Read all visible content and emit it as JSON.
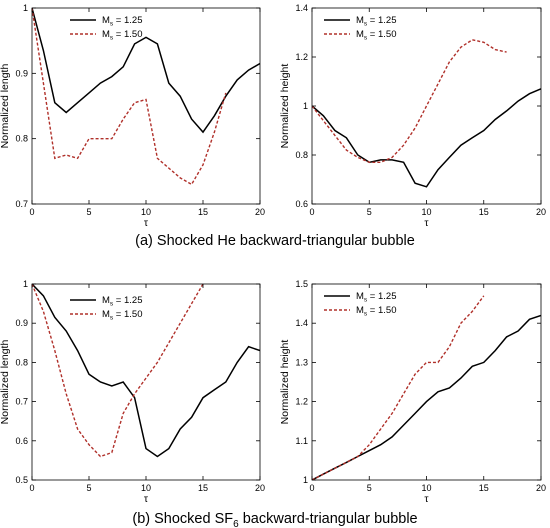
{
  "panels": [
    {
      "caption": "(a) Shocked He backward-triangular bubble",
      "chart_data": [
        {
          "type": "line",
          "xlabel": "τ",
          "ylabel": "Normalized length",
          "xlim": [
            0,
            20
          ],
          "ylim": [
            0.7,
            1.0
          ],
          "xticks": [
            "0",
            "5",
            "10",
            "15",
            "20"
          ],
          "yticks": [
            "0.7",
            "0.8",
            "0.9",
            "1"
          ],
          "legend_position": "top-right",
          "series": [
            {
              "name": "Ms = 1.25",
              "color": "#000000",
              "style": "solid",
              "x": [
                0,
                1,
                2,
                3,
                4,
                5,
                6,
                7,
                8,
                9,
                10,
                11,
                12,
                13,
                14,
                15,
                16,
                17,
                18,
                19,
                20
              ],
              "y": [
                1.0,
                0.935,
                0.855,
                0.84,
                0.855,
                0.87,
                0.885,
                0.895,
                0.91,
                0.945,
                0.955,
                0.945,
                0.885,
                0.865,
                0.83,
                0.81,
                0.835,
                0.865,
                0.89,
                0.905,
                0.915
              ]
            },
            {
              "name": "Ms = 1.50",
              "color": "#b0302a",
              "style": "dashed",
              "x": [
                0,
                1,
                2,
                3,
                4,
                5,
                6,
                7,
                8,
                9,
                10,
                11,
                12,
                13,
                14,
                15,
                16,
                17
              ],
              "y": [
                1.0,
                0.885,
                0.77,
                0.775,
                0.77,
                0.8,
                0.8,
                0.8,
                0.83,
                0.855,
                0.86,
                0.77,
                0.755,
                0.74,
                0.73,
                0.76,
                0.81,
                0.87
              ]
            }
          ]
        },
        {
          "type": "line",
          "xlabel": "τ",
          "ylabel": "Normalized height",
          "xlim": [
            0,
            20
          ],
          "ylim": [
            0.6,
            1.4
          ],
          "xticks": [
            "0",
            "5",
            "10",
            "15",
            "20"
          ],
          "yticks": [
            "0.6",
            "0.8",
            "1",
            "1.2",
            "1.4"
          ],
          "legend_position": "top-left",
          "series": [
            {
              "name": "Ms = 1.25",
              "color": "#000000",
              "style": "solid",
              "x": [
                0,
                1,
                2,
                3,
                4,
                5,
                6,
                7,
                8,
                9,
                10,
                11,
                12,
                13,
                14,
                15,
                16,
                17,
                18,
                19,
                20
              ],
              "y": [
                1.0,
                0.96,
                0.9,
                0.87,
                0.8,
                0.77,
                0.78,
                0.78,
                0.77,
                0.685,
                0.67,
                0.74,
                0.79,
                0.84,
                0.87,
                0.9,
                0.945,
                0.98,
                1.02,
                1.05,
                1.07
              ]
            },
            {
              "name": "Ms = 1.50",
              "color": "#b0302a",
              "style": "dashed",
              "x": [
                0,
                1,
                2,
                3,
                4,
                5,
                6,
                7,
                8,
                9,
                10,
                11,
                12,
                13,
                14,
                15,
                16,
                17
              ],
              "y": [
                1.0,
                0.94,
                0.88,
                0.82,
                0.79,
                0.77,
                0.77,
                0.79,
                0.84,
                0.91,
                1.0,
                1.09,
                1.18,
                1.24,
                1.27,
                1.26,
                1.23,
                1.22
              ]
            }
          ]
        }
      ]
    },
    {
      "caption_pre": "(b) Shocked SF",
      "caption_sub": "6",
      "caption_post": " backward-triangular bubble",
      "chart_data": [
        {
          "type": "line",
          "xlabel": "τ",
          "ylabel": "Normalized length",
          "xlim": [
            0,
            20
          ],
          "ylim": [
            0.5,
            1.0
          ],
          "xticks": [
            "0",
            "5",
            "10",
            "15",
            "20"
          ],
          "yticks": [
            "0.5",
            "0.6",
            "0.7",
            "0.8",
            "0.9",
            "1"
          ],
          "legend_position": "top-center",
          "series": [
            {
              "name": "Ms = 1.25",
              "color": "#000000",
              "style": "solid",
              "x": [
                0,
                1,
                2,
                3,
                4,
                5,
                6,
                7,
                8,
                9,
                10,
                11,
                12,
                13,
                14,
                15,
                16,
                17,
                18,
                19,
                20
              ],
              "y": [
                1.0,
                0.97,
                0.915,
                0.88,
                0.83,
                0.77,
                0.75,
                0.74,
                0.75,
                0.71,
                0.58,
                0.56,
                0.58,
                0.63,
                0.66,
                0.71,
                0.73,
                0.75,
                0.8,
                0.84,
                0.83
              ]
            },
            {
              "name": "Ms = 1.50",
              "color": "#b0302a",
              "style": "dashed",
              "x": [
                0,
                1,
                2,
                3,
                4,
                5,
                6,
                7,
                8,
                9,
                10,
                11,
                12,
                13,
                14,
                15
              ],
              "y": [
                1.0,
                0.93,
                0.83,
                0.72,
                0.63,
                0.59,
                0.56,
                0.57,
                0.67,
                0.72,
                0.76,
                0.8,
                0.85,
                0.9,
                0.95,
                1.0
              ]
            }
          ]
        },
        {
          "type": "line",
          "xlabel": "τ",
          "ylabel": "Normalized height",
          "xlim": [
            0,
            20
          ],
          "ylim": [
            1.0,
            1.5
          ],
          "xticks": [
            "0",
            "5",
            "10",
            "15",
            "20"
          ],
          "yticks": [
            "1",
            "1.1",
            "1.2",
            "1.3",
            "1.4",
            "1.5"
          ],
          "legend_position": "top-left",
          "series": [
            {
              "name": "Ms = 1.25",
              "color": "#000000",
              "style": "solid",
              "x": [
                0,
                1,
                2,
                3,
                4,
                5,
                6,
                7,
                8,
                9,
                10,
                11,
                12,
                13,
                14,
                15,
                16,
                17,
                18,
                19,
                20
              ],
              "y": [
                1.0,
                1.015,
                1.03,
                1.045,
                1.06,
                1.075,
                1.09,
                1.11,
                1.14,
                1.17,
                1.2,
                1.225,
                1.235,
                1.26,
                1.29,
                1.3,
                1.33,
                1.365,
                1.38,
                1.41,
                1.42
              ]
            },
            {
              "name": "Ms = 1.50",
              "color": "#b0302a",
              "style": "dashed",
              "x": [
                0,
                1,
                2,
                3,
                4,
                5,
                6,
                7,
                8,
                9,
                10,
                11,
                12,
                13,
                14,
                15
              ],
              "y": [
                1.0,
                1.015,
                1.03,
                1.045,
                1.06,
                1.09,
                1.13,
                1.17,
                1.22,
                1.27,
                1.3,
                1.3,
                1.34,
                1.4,
                1.43,
                1.47
              ]
            }
          ]
        }
      ]
    }
  ]
}
